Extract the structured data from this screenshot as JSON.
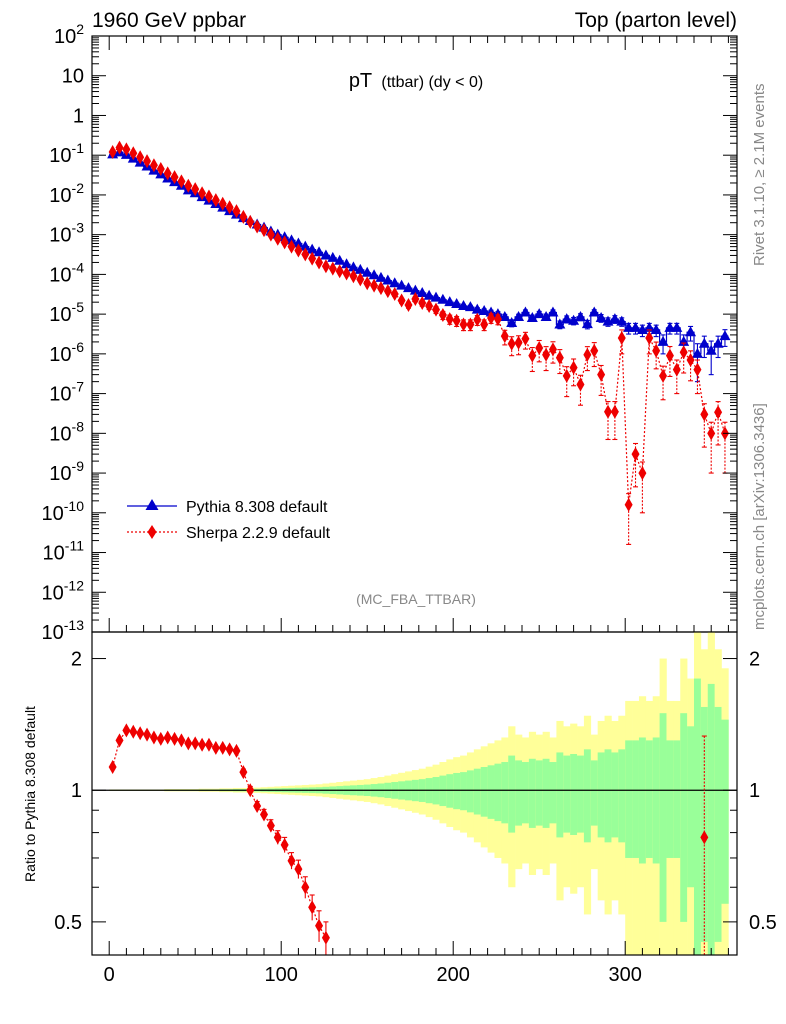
{
  "header": {
    "left": "1960 GeV ppbar",
    "right": "Top (parton level)"
  },
  "side_labels": {
    "rivet": "Rivet 3.1.10, ≥ 2.1M events",
    "mcplots": "mcplots.cern.ch [arXiv:1306.3436]"
  },
  "colors": {
    "pythia": "#0000cc",
    "sherpa": "#ee0000",
    "band_inner": "#99ff99",
    "band_outer": "#ffff99"
  },
  "chart_data": [
    {
      "type": "line",
      "title_main": "pT",
      "title_sub": "(ttbar) (dy < 0)",
      "watermark": "(MC_FBA_TTBAR)",
      "xlabel": "",
      "ylabel": "",
      "xlim": [
        -10,
        365
      ],
      "ylim": [
        1e-13,
        100
      ],
      "yscale": "log",
      "ytick_labels": [
        "10^-13",
        "10^-12",
        "10^-11",
        "10^-10",
        "10^-9",
        "10^-8",
        "10^-7",
        "10^-6",
        "10^-5",
        "10^-4",
        "10^-3",
        "10^-2",
        "10^-1",
        "1",
        "10",
        "10^2"
      ],
      "legend": [
        "Pythia 8.308 default",
        "Sherpa 2.2.9 default"
      ],
      "legend_position": "lower-left",
      "series": [
        {
          "name": "Pythia 8.308 default",
          "marker": "triangle",
          "x": [
            2,
            6,
            10,
            14,
            18,
            22,
            26,
            30,
            34,
            38,
            42,
            46,
            50,
            54,
            58,
            62,
            66,
            70,
            74,
            78,
            82,
            86,
            90,
            94,
            98,
            102,
            106,
            110,
            114,
            118,
            122,
            126,
            130,
            134,
            138,
            142,
            146,
            150,
            154,
            158,
            162,
            166,
            170,
            174,
            178,
            182,
            186,
            190,
            194,
            198,
            202,
            206,
            210,
            214,
            218,
            222,
            226,
            230,
            234,
            238,
            242,
            246,
            250,
            254,
            258,
            262,
            266,
            270,
            274,
            278,
            282,
            286,
            290,
            294,
            298,
            302,
            306,
            310,
            314,
            318,
            322,
            326,
            330,
            334,
            338,
            342,
            346,
            350,
            354,
            358
          ],
          "y": [
            0.105,
            0.118,
            0.102,
            0.082,
            0.065,
            0.052,
            0.041,
            0.033,
            0.026,
            0.021,
            0.017,
            0.013,
            0.011,
            0.0088,
            0.0072,
            0.0059,
            0.0048,
            0.0039,
            0.0032,
            0.0026,
            0.0022,
            0.0018,
            0.0015,
            0.0012,
            0.001,
            0.00086,
            0.00072,
            0.0006,
            0.0005,
            0.00042,
            0.00036,
            0.0003,
            0.00026,
            0.00022,
            0.00018,
            0.00015,
            0.00013,
            0.00011,
            9.5e-05,
            8.2e-05,
            7e-05,
            6e-05,
            5.2e-05,
            4.5e-05,
            3.9e-05,
            3.4e-05,
            2.9e-05,
            2.6e-05,
            2.3e-05,
            2e-05,
            1.8e-05,
            1.6e-05,
            1.5e-05,
            1.3e-05,
            1.2e-05,
            1.1e-05,
            1e-05,
            8.5e-06,
            6e-06,
            8.5e-06,
            1.1e-05,
            8e-06,
            1e-05,
            8.5e-06,
            1.1e-05,
            5.5e-06,
            7.5e-06,
            6.8e-06,
            8.5e-06,
            5.6e-06,
            1.1e-05,
            8e-06,
            6.5e-06,
            7.5e-06,
            6.5e-06,
            4.5e-06,
            4.5e-06,
            4e-06,
            4.5e-06,
            4e-06,
            2e-06,
            4.5e-06,
            4.5e-06,
            2e-06,
            3.5e-06,
            1e-06,
            1.8e-06,
            1.2e-06,
            1.8e-06,
            2.8e-06
          ],
          "yerr_rel": [
            0.002,
            0.002,
            0.002,
            0.002,
            0.002,
            0.002,
            0.002,
            0.002,
            0.003,
            0.003,
            0.003,
            0.003,
            0.003,
            0.004,
            0.004,
            0.004,
            0.005,
            0.005,
            0.006,
            0.006,
            0.007,
            0.007,
            0.008,
            0.009,
            0.01,
            0.011,
            0.012,
            0.013,
            0.014,
            0.015,
            0.016,
            0.018,
            0.02,
            0.022,
            0.024,
            0.026,
            0.028,
            0.03,
            0.033,
            0.036,
            0.04,
            0.044,
            0.048,
            0.052,
            0.056,
            0.06,
            0.066,
            0.072,
            0.08,
            0.088,
            0.095,
            0.1,
            0.11,
            0.12,
            0.13,
            0.14,
            0.15,
            0.16,
            0.2,
            0.17,
            0.16,
            0.18,
            0.17,
            0.18,
            0.16,
            0.22,
            0.2,
            0.21,
            0.2,
            0.24,
            0.17,
            0.22,
            0.24,
            0.22,
            0.24,
            0.3,
            0.3,
            0.32,
            0.3,
            0.32,
            0.5,
            0.3,
            0.3,
            0.5,
            0.4,
            0.8,
            0.55,
            0.75,
            0.55,
            0.45
          ]
        },
        {
          "name": "Sherpa 2.2.9 default",
          "marker": "diamond",
          "x": [
            2,
            6,
            10,
            14,
            18,
            22,
            26,
            30,
            34,
            38,
            42,
            46,
            50,
            54,
            58,
            62,
            66,
            70,
            74,
            78,
            82,
            86,
            90,
            94,
            98,
            102,
            106,
            110,
            114,
            118,
            122,
            126,
            130,
            134,
            138,
            142,
            146,
            150,
            154,
            158,
            162,
            166,
            170,
            174,
            178,
            182,
            186,
            190,
            194,
            198,
            202,
            206,
            210,
            214,
            218,
            222,
            226,
            230,
            234,
            238,
            242,
            246,
            250,
            254,
            258,
            262,
            266,
            270,
            274,
            278,
            282,
            286,
            290,
            294,
            298,
            302,
            306,
            310,
            314,
            318,
            322,
            326,
            330,
            334,
            338,
            342,
            346,
            350,
            354,
            358
          ],
          "y": [
            0.12,
            0.155,
            0.14,
            0.112,
            0.089,
            0.071,
            0.056,
            0.045,
            0.035,
            0.028,
            0.022,
            0.017,
            0.014,
            0.011,
            0.0091,
            0.0074,
            0.006,
            0.0049,
            0.0039,
            0.0028,
            0.0021,
            0.0016,
            0.0013,
            0.001,
            0.00079,
            0.00064,
            0.0005,
            0.0004,
            0.00032,
            0.00025,
            0.0002,
            0.00016,
            0.00014,
            0.00012,
            0.000105,
            9e-05,
            7.5e-05,
            6e-05,
            5.2e-05,
            4.5e-05,
            3.8e-05,
            3.2e-05,
            2.2e-05,
            1.7e-05,
            2.4e-05,
            1.9e-05,
            1.6e-05,
            1.3e-05,
            9.5e-06,
            7.5e-06,
            6.8e-06,
            5.5e-06,
            5.5e-06,
            7.2e-06,
            5.5e-06,
            8e-06,
            7.5e-06,
            2.8e-06,
            1.8e-06,
            1.9e-06,
            2.4e-06,
            9e-07,
            1.4e-06,
            9.5e-07,
            1.3e-06,
            8e-07,
            2.8e-07,
            4.5e-07,
            1.7e-07,
            9.5e-07,
            1.2e-06,
            3e-07,
            3.5e-08,
            3.5e-08,
            2.5e-06,
            1.6e-10,
            3e-09,
            1e-09,
            2.5e-06,
            1.2e-06,
            2.8e-07,
            9e-07,
            4e-07,
            1.1e-06,
            7e-07,
            4e-07,
            3e-08,
            1e-08,
            3.4e-08,
            1e-08
          ],
          "yerr_rel": [
            0.005,
            0.005,
            0.005,
            0.005,
            0.005,
            0.005,
            0.006,
            0.006,
            0.006,
            0.007,
            0.007,
            0.008,
            0.008,
            0.009,
            0.01,
            0.01,
            0.011,
            0.012,
            0.013,
            0.015,
            0.017,
            0.019,
            0.021,
            0.024,
            0.027,
            0.03,
            0.034,
            0.038,
            0.042,
            0.047,
            0.052,
            0.058,
            0.062,
            0.067,
            0.072,
            0.077,
            0.083,
            0.09,
            0.1,
            0.11,
            0.12,
            0.13,
            0.15,
            0.17,
            0.15,
            0.17,
            0.18,
            0.2,
            0.23,
            0.26,
            0.28,
            0.3,
            0.3,
            0.28,
            0.3,
            0.27,
            0.28,
            0.4,
            0.5,
            0.5,
            0.45,
            0.6,
            0.55,
            0.6,
            0.55,
            0.6,
            0.7,
            0.65,
            0.7,
            0.6,
            0.6,
            0.7,
            0.8,
            0.8,
            0.6,
            0.9,
            0.85,
            0.9,
            0.6,
            0.65,
            0.75,
            0.7,
            0.75,
            0.7,
            0.7,
            0.75,
            0.85,
            0.9,
            0.85,
            0.9
          ]
        }
      ]
    },
    {
      "type": "line",
      "ylabel": "Ratio to Pythia 8.308 default",
      "xlim": [
        -10,
        365
      ],
      "ylim": [
        0.42,
        2.3
      ],
      "yscale": "log",
      "yticks_labeled": [
        0.5,
        1,
        2
      ],
      "xticks_labeled": [
        0,
        100,
        200,
        300
      ],
      "band_x": [
        2,
        6,
        10,
        14,
        18,
        22,
        26,
        30,
        34,
        38,
        42,
        46,
        50,
        54,
        58,
        62,
        66,
        70,
        74,
        78,
        82,
        86,
        90,
        94,
        98,
        102,
        106,
        110,
        114,
        118,
        122,
        126,
        130,
        134,
        138,
        142,
        146,
        150,
        154,
        158,
        162,
        166,
        170,
        174,
        178,
        182,
        186,
        190,
        194,
        198,
        202,
        206,
        210,
        214,
        218,
        222,
        226,
        230,
        234,
        238,
        242,
        246,
        250,
        254,
        258,
        262,
        266,
        270,
        274,
        278,
        282,
        286,
        290,
        294,
        298,
        302,
        306,
        310,
        314,
        318,
        322,
        326,
        330,
        334,
        338,
        342,
        346,
        350,
        354,
        358
      ],
      "band_inner_rel": [
        0.002,
        0.002,
        0.002,
        0.002,
        0.002,
        0.002,
        0.002,
        0.002,
        0.003,
        0.003,
        0.003,
        0.003,
        0.003,
        0.004,
        0.004,
        0.004,
        0.005,
        0.005,
        0.006,
        0.006,
        0.007,
        0.007,
        0.008,
        0.009,
        0.01,
        0.011,
        0.012,
        0.013,
        0.014,
        0.015,
        0.016,
        0.018,
        0.02,
        0.022,
        0.024,
        0.026,
        0.028,
        0.03,
        0.033,
        0.036,
        0.04,
        0.044,
        0.048,
        0.052,
        0.056,
        0.06,
        0.066,
        0.072,
        0.08,
        0.088,
        0.095,
        0.1,
        0.11,
        0.12,
        0.13,
        0.14,
        0.15,
        0.16,
        0.2,
        0.17,
        0.16,
        0.18,
        0.17,
        0.18,
        0.16,
        0.22,
        0.2,
        0.21,
        0.2,
        0.24,
        0.17,
        0.22,
        0.24,
        0.22,
        0.24,
        0.3,
        0.3,
        0.32,
        0.3,
        0.32,
        0.5,
        0.3,
        0.3,
        0.5,
        0.4,
        0.8,
        0.55,
        0.75,
        0.55,
        0.45
      ],
      "series": [
        {
          "name": "Sherpa 2.2.9 default",
          "x": [
            2,
            6,
            10,
            14,
            18,
            22,
            26,
            30,
            34,
            38,
            42,
            46,
            50,
            54,
            58,
            62,
            66,
            70,
            74,
            78,
            82,
            86,
            90,
            94,
            98,
            102,
            106,
            110,
            114,
            118,
            122,
            126,
            346
          ],
          "y": [
            1.13,
            1.3,
            1.37,
            1.36,
            1.35,
            1.34,
            1.32,
            1.31,
            1.32,
            1.31,
            1.3,
            1.28,
            1.28,
            1.27,
            1.27,
            1.25,
            1.25,
            1.24,
            1.23,
            1.1,
            1.0,
            0.92,
            0.88,
            0.83,
            0.78,
            0.75,
            0.69,
            0.66,
            0.6,
            0.54,
            0.49,
            0.46,
            0.78
          ],
          "yerr_abs": [
            0.01,
            0.01,
            0.01,
            0.01,
            0.01,
            0.01,
            0.01,
            0.01,
            0.01,
            0.01,
            0.01,
            0.01,
            0.01,
            0.01,
            0.012,
            0.012,
            0.014,
            0.015,
            0.016,
            0.018,
            0.02,
            0.022,
            0.024,
            0.026,
            0.028,
            0.03,
            0.03,
            0.032,
            0.034,
            0.036,
            0.04,
            0.04,
            0.55
          ]
        }
      ]
    }
  ]
}
